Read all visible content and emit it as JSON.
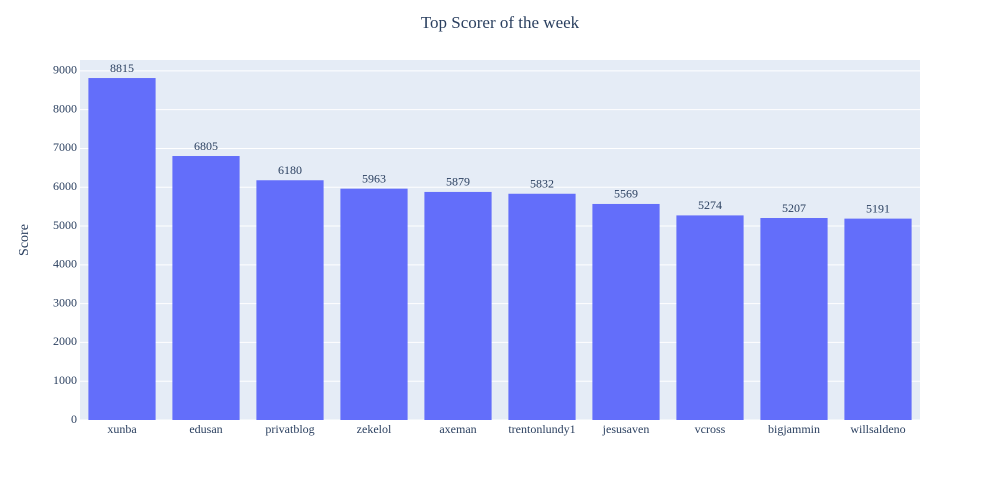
{
  "chart_data": {
    "type": "bar",
    "title": "Top Scorer of the week",
    "y_label": "Score",
    "categories": [
      "xunba",
      "edusan",
      "privatblog",
      "zekelol",
      "axeman",
      "trentonlundy1",
      "jesusaven",
      "vcross",
      "bigjammin",
      "willsaldeno"
    ],
    "values": [
      8815,
      6805,
      6180,
      5963,
      5879,
      5832,
      5569,
      5274,
      5207,
      5191
    ],
    "color": "#636efa",
    "ylim": [
      0,
      9280
    ],
    "yticks": [
      0,
      1000,
      2000,
      3000,
      4000,
      5000,
      6000,
      7000,
      8000,
      9000
    ],
    "grid": true
  }
}
